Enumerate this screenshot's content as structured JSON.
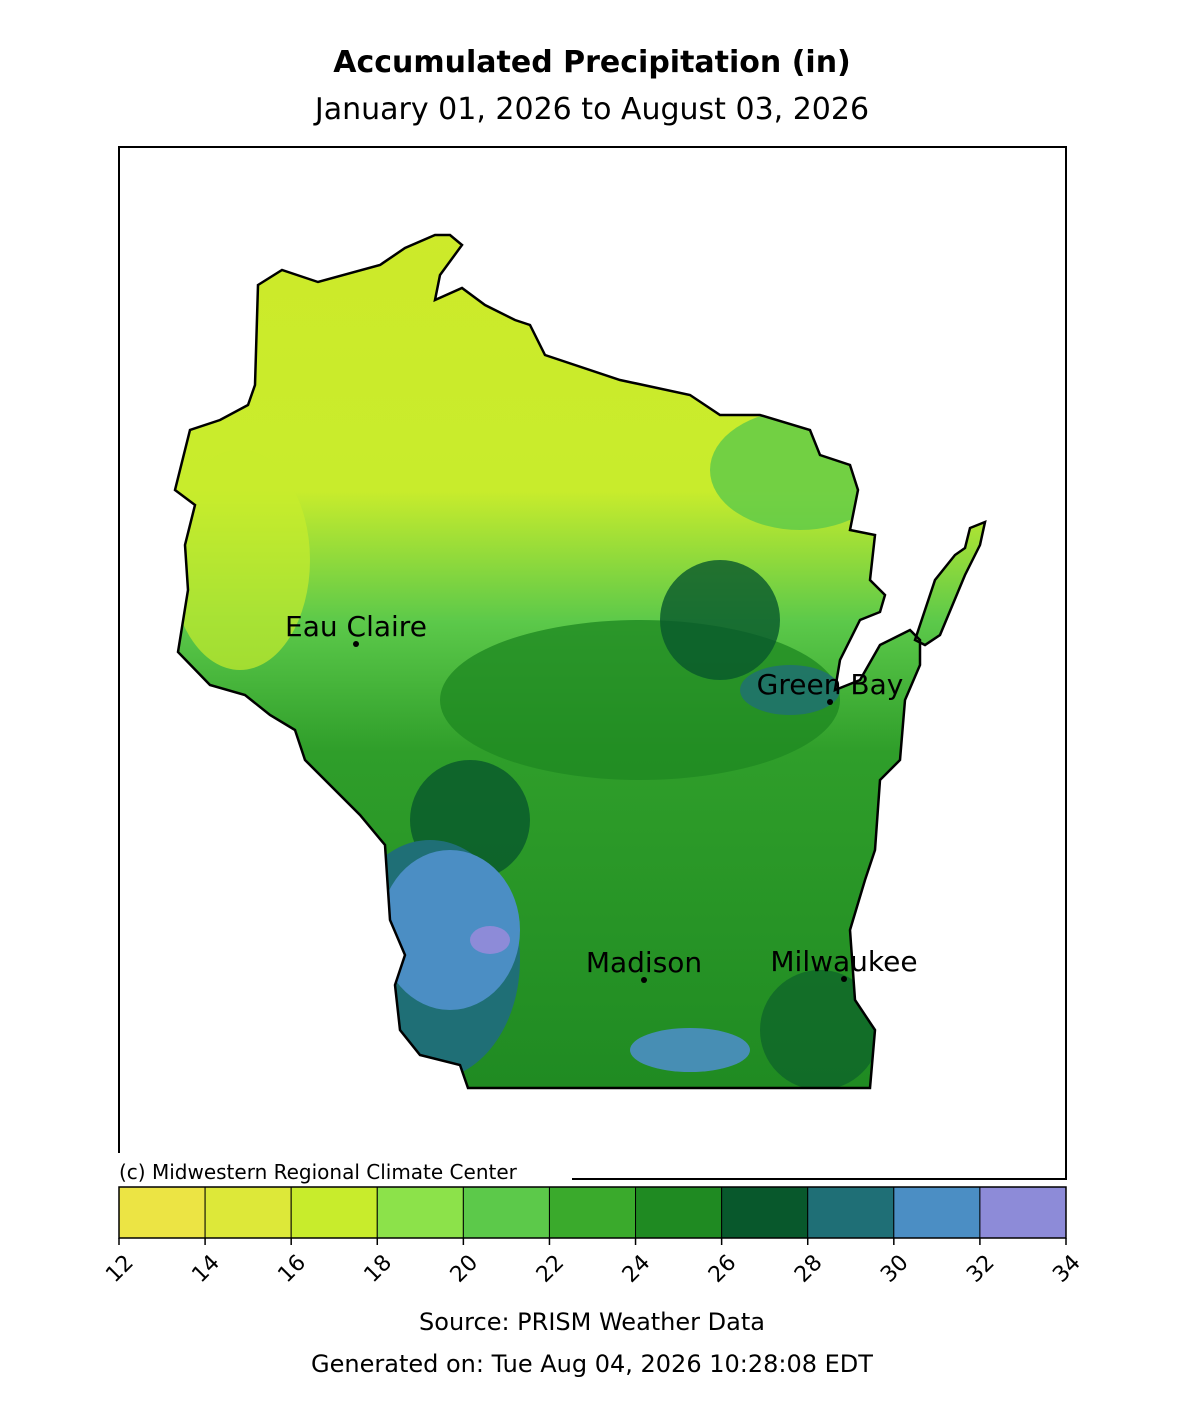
{
  "title": "Accumulated Precipitation (in)",
  "subtitle": "January 01, 2026 to August 03, 2026",
  "cities": [
    "Eau Claire",
    "Green Bay",
    "Madison",
    "Milwaukee"
  ],
  "credit": "(c) Midwestern Regional Climate Center",
  "colorbar": {
    "bounds": [
      12,
      14,
      16,
      18,
      20,
      22,
      24,
      26,
      28,
      30,
      32,
      34
    ],
    "colors": [
      "#ece444",
      "#dde839",
      "#c8ec2c",
      "#8ce24a",
      "#5cc94a",
      "#3aaa2c",
      "#1f8a22",
      "#08582c",
      "#1f6f76",
      "#4b8ec4",
      "#8d8bd8"
    ]
  },
  "source": "Source: PRISM Weather Data",
  "generated": "Generated on: Tue Aug 04, 2026 10:28:08 EDT"
}
